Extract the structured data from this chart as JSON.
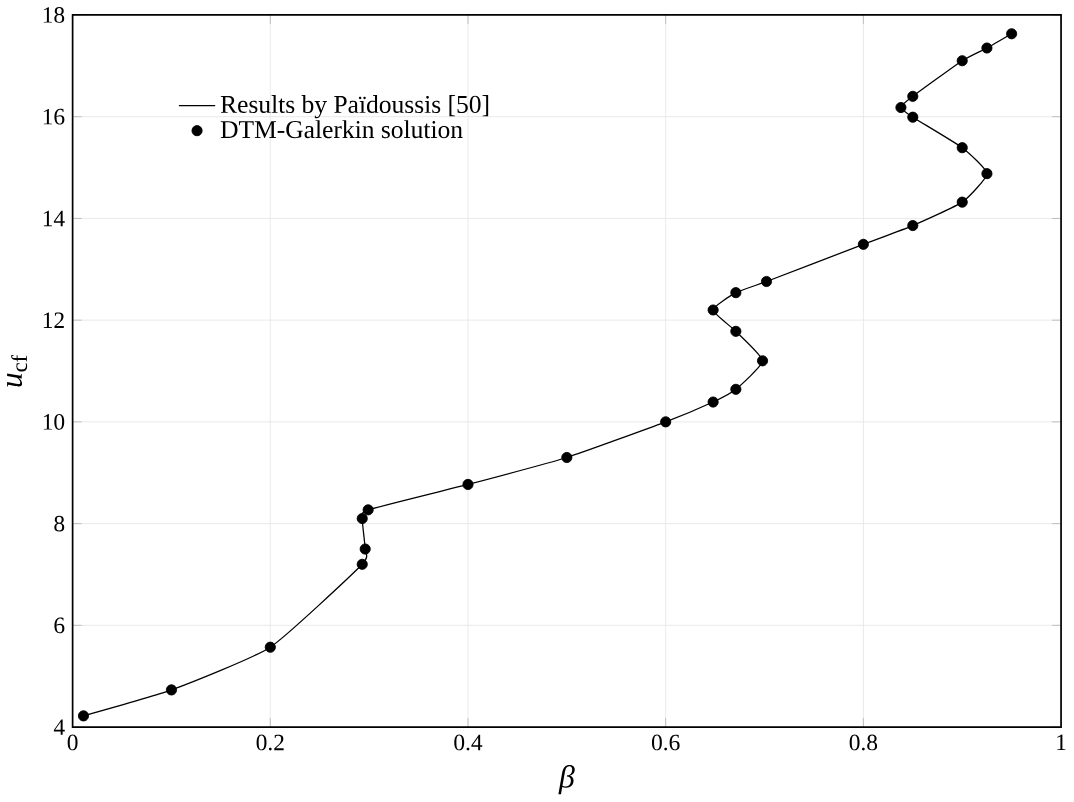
{
  "chart_data": {
    "type": "line",
    "xlabel": "β",
    "ylabel": "*u*$_{cf}$",
    "xlim": [
      0,
      1
    ],
    "ylim": [
      4,
      18
    ],
    "xticks": [
      0,
      0.2,
      0.4,
      0.6,
      0.8,
      1
    ],
    "yticks": [
      4,
      6,
      8,
      10,
      12,
      14,
      16,
      18
    ],
    "grid": true,
    "legend": "top left",
    "series": [
      {
        "name": "Results by Païdoussis [50]",
        "line_style": "solid",
        "marker": "none",
        "color": "#000000",
        "x": [
          0.011,
          0.1,
          0.2,
          0.293,
          0.296,
          0.293,
          0.299,
          0.4,
          0.5,
          0.6,
          0.648,
          0.671,
          0.698,
          0.671,
          0.648,
          0.671,
          0.702,
          0.8,
          0.85,
          0.9,
          0.925,
          0.9,
          0.85,
          0.838,
          0.85,
          0.9,
          0.925,
          0.95
        ],
        "values": [
          4.22,
          4.73,
          5.57,
          7.2,
          7.5,
          8.1,
          8.27,
          8.77,
          9.3,
          10,
          10.39,
          10.64,
          11.2,
          11.78,
          12.2,
          12.54,
          12.76,
          13.49,
          13.86,
          14.32,
          14.88,
          15.39,
          15.99,
          16.18,
          16.4,
          17.1,
          17.35,
          17.63
        ]
      },
      {
        "name": "DTM-Galerkin solution",
        "type": "scatter",
        "marker": "circle",
        "color": "#000000",
        "x": [
          0.011,
          0.1,
          0.2,
          0.293,
          0.296,
          0.293,
          0.299,
          0.4,
          0.5,
          0.6,
          0.648,
          0.671,
          0.698,
          0.671,
          0.648,
          0.671,
          0.702,
          0.8,
          0.85,
          0.9,
          0.925,
          0.9,
          0.85,
          0.838,
          0.85,
          0.9,
          0.925,
          0.95
        ],
        "values": [
          4.22,
          4.73,
          5.57,
          7.2,
          7.5,
          8.1,
          8.27,
          8.77,
          9.3,
          10,
          10.39,
          10.64,
          11.2,
          11.78,
          12.2,
          12.54,
          12.76,
          13.49,
          13.86,
          14.32,
          14.88,
          15.39,
          15.99,
          16.18,
          16.4,
          17.1,
          17.35,
          17.63
        ]
      }
    ]
  }
}
